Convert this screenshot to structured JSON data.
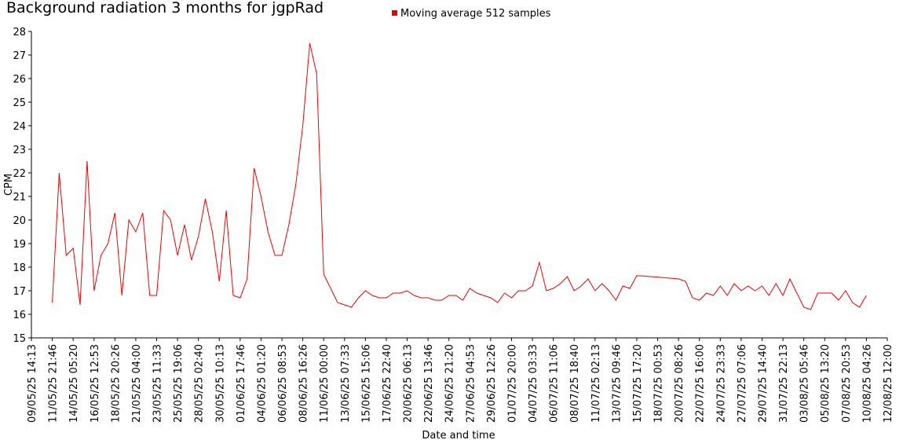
{
  "chart_data": {
    "type": "line",
    "title": "Background radiation 3 months for jgpRad",
    "x_label": "Date and time",
    "y_label": "CPM",
    "legend": "top",
    "ylim": [
      15,
      28
    ],
    "yticks": [
      15,
      16,
      17,
      18,
      19,
      20,
      21,
      22,
      23,
      24,
      25,
      26,
      27,
      28
    ],
    "xticks": [
      "09/05/25 14:13",
      "11/05/25 21:46",
      "14/05/25 05:20",
      "16/05/25 12:53",
      "18/05/25 20:26",
      "21/05/25 04:00",
      "23/05/25 11:33",
      "25/05/25 19:06",
      "28/05/25 02:40",
      "30/05/25 10:13",
      "01/06/25 17:46",
      "04/06/25 01:20",
      "06/06/25 08:53",
      "08/06/25 16:26",
      "11/06/25 00:00",
      "13/06/25 07:33",
      "15/06/25 15:06",
      "17/06/25 22:40",
      "20/06/25 06:13",
      "22/06/25 13:46",
      "24/06/25 21:20",
      "27/06/25 04:53",
      "29/06/25 12:26",
      "01/07/25 20:00",
      "04/07/25 03:33",
      "06/07/25 11:06",
      "08/07/25 18:40",
      "11/07/25 02:13",
      "13/07/25 09:46",
      "15/07/25 17:20",
      "18/07/25 00:53",
      "20/07/25 08:26",
      "22/07/25 16:00",
      "24/07/25 23:33",
      "27/07/25 07:06",
      "29/07/25 14:40",
      "31/07/25 22:13",
      "03/08/25 05:46",
      "05/08/25 13:20",
      "07/08/25 20:53",
      "10/08/25 04:26",
      "12/08/25 12:00"
    ],
    "series": [
      {
        "name": "Moving average 512 samples",
        "color": "#ee0000",
        "values": [
          null,
          null,
          null,
          16.5,
          22,
          18.5,
          18.8,
          16.4,
          22.5,
          17,
          18.5,
          19,
          20.3,
          16.8,
          20,
          19.5,
          20.3,
          16.8,
          16.8,
          20.4,
          20,
          18.5,
          19.8,
          18.3,
          19.3,
          20.9,
          19.5,
          17.4,
          20.4,
          16.8,
          16.7,
          17.5,
          22.2,
          21,
          19.5,
          18.5,
          18.5,
          19.8,
          21.5,
          24,
          27.5,
          26.2,
          17.7,
          17.1,
          16.5,
          16.4,
          16.3,
          16.7,
          17,
          16.8,
          16.7,
          16.7,
          16.9,
          16.9,
          17,
          16.8,
          16.7,
          16.7,
          16.6,
          16.6,
          16.8,
          16.8,
          16.6,
          17.1,
          16.9,
          16.8,
          16.7,
          16.5,
          16.9,
          16.7,
          17,
          17,
          17.2,
          18.2,
          17,
          17.1,
          17.3,
          17.6,
          17,
          17.2,
          17.5,
          17,
          17.3,
          17,
          16.6,
          17.2,
          17.1,
          17.64,
          17.62,
          17.6,
          17.58,
          17.55,
          17.53,
          17.5,
          17.4,
          16.7,
          16.6,
          16.9,
          16.8,
          17.2,
          16.8,
          17.3,
          17,
          17.2,
          17,
          17.2,
          16.8,
          17.3,
          16.8,
          17.5,
          16.9,
          16.3,
          16.2,
          16.9,
          16.9,
          16.9,
          16.6,
          17,
          16.5,
          16.3,
          16.8,
          null,
          null,
          null
        ]
      }
    ]
  }
}
